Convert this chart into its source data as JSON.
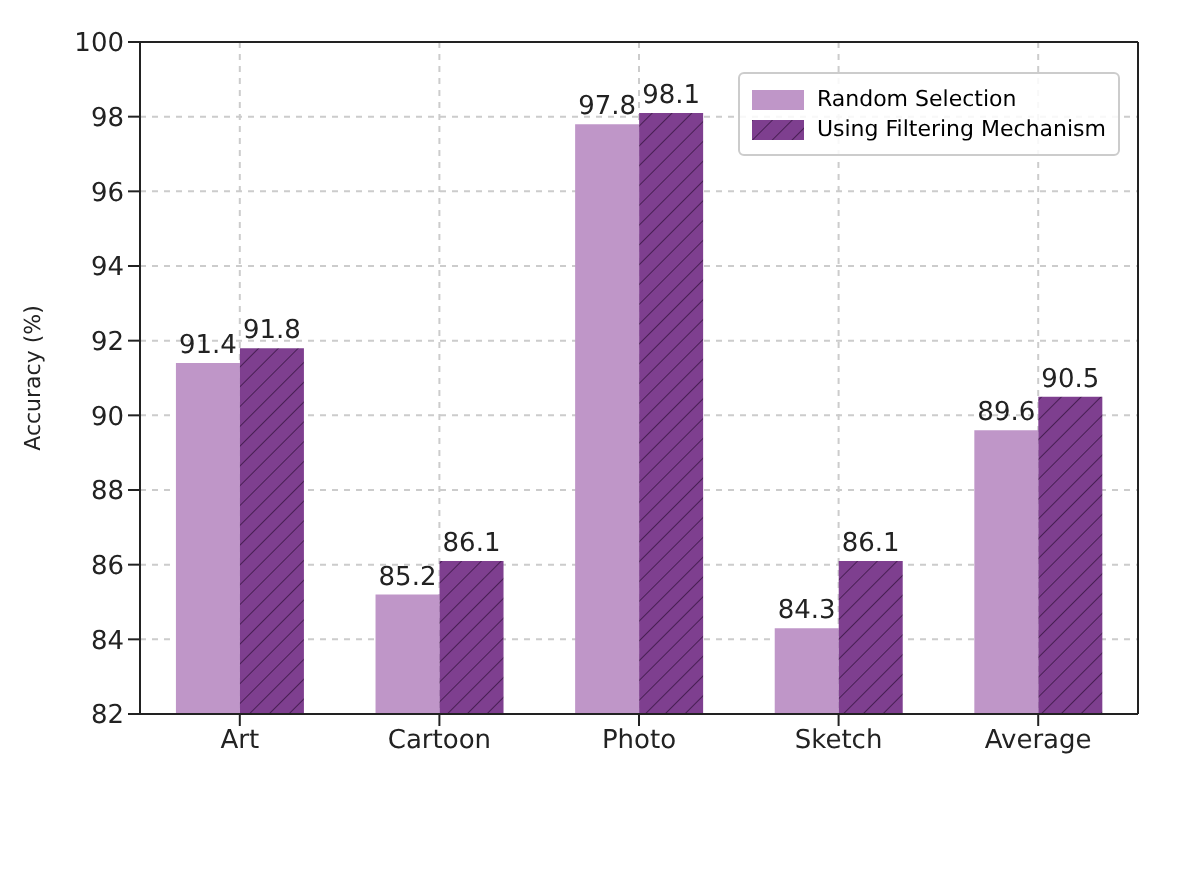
{
  "chart_data": {
    "type": "bar",
    "ylabel": "Accuracy (%)",
    "categories": [
      "Art",
      "Cartoon",
      "Photo",
      "Sketch",
      "Average"
    ],
    "series": [
      {
        "name": "Random Selection",
        "color": "#bf96c8",
        "values": [
          91.4,
          85.2,
          97.8,
          84.3,
          89.6
        ]
      },
      {
        "name": "Using Filtering Mechanism",
        "color": "#7e3f8f",
        "values": [
          91.8,
          86.1,
          98.1,
          86.1,
          90.5
        ]
      }
    ],
    "ylim": [
      82,
      100
    ],
    "yticks": [
      82,
      84,
      86,
      88,
      90,
      92,
      94,
      96,
      98,
      100
    ],
    "grid": true,
    "legend": "top right",
    "data_labels": true
  }
}
